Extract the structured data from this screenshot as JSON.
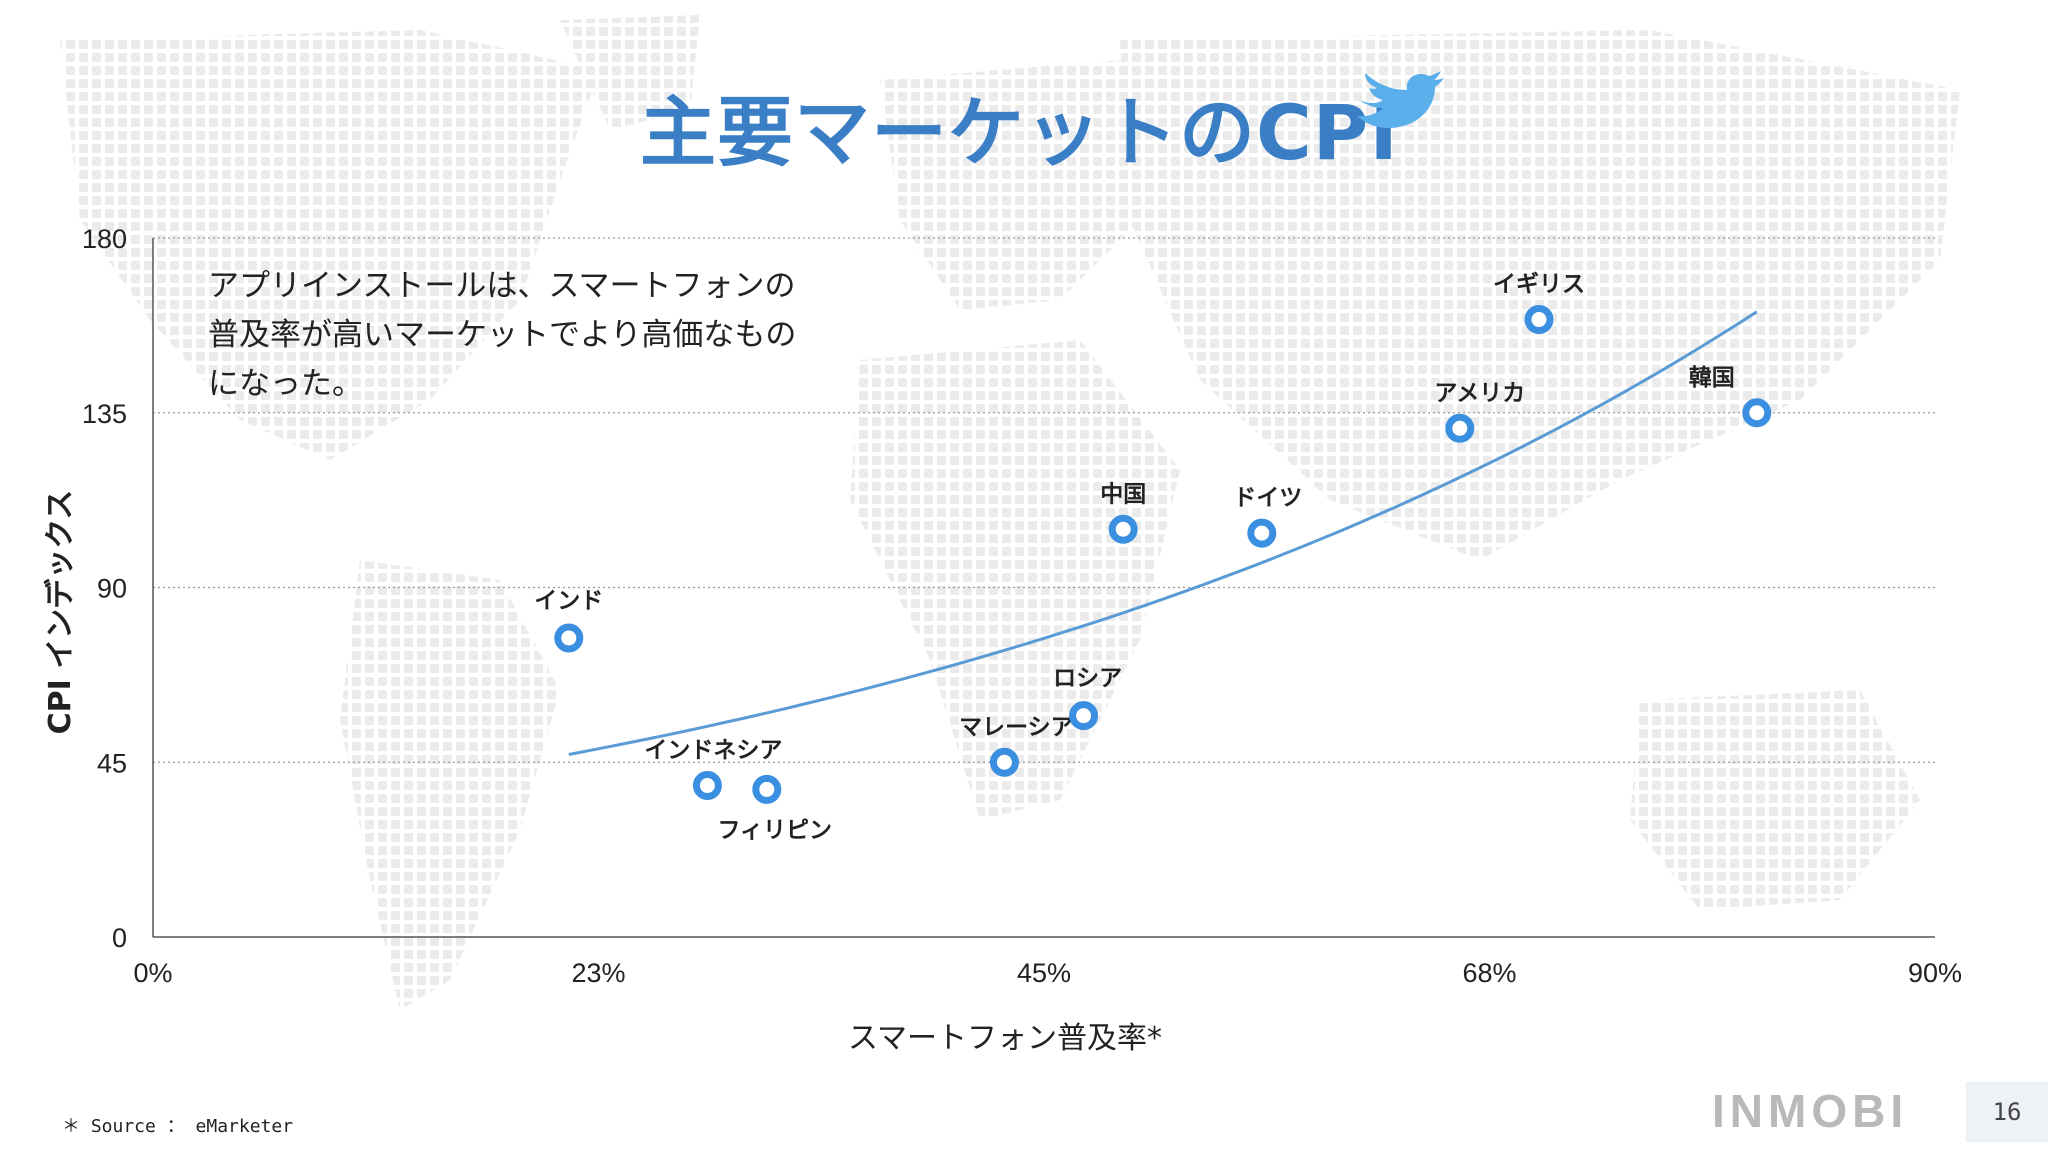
{
  "slide": {
    "title": "主要マーケットのCPI",
    "note": "アプリインストールは、スマートフォンの\n普及率が高いマーケットでより高価なもの\nになった。",
    "source": "＊ Source ： eMarketer",
    "brand": "INMOBI",
    "page_number": "16",
    "icons": [
      "twitter-bird-icon",
      "world-map-background"
    ],
    "accent_color": "#3a7fc6"
  },
  "chart_data": {
    "type": "scatter",
    "xlabel": "スマートフォン普及率*",
    "ylabel": "CPI インデックス",
    "xlim": [
      0,
      90
    ],
    "ylim": [
      0,
      180
    ],
    "x_ticks": [
      0,
      22.5,
      45,
      67.5,
      90
    ],
    "x_tick_labels": [
      "0%",
      "23%",
      "45%",
      "68%",
      "90%"
    ],
    "y_ticks": [
      0,
      45,
      90,
      135,
      180
    ],
    "y_tick_labels": [
      "0",
      "45",
      "90",
      "135",
      "180"
    ],
    "grid": "horizontal dotted",
    "point_color": "#3a8fe0",
    "trend_color": "#5b9bd5",
    "points": [
      {
        "name": "インド",
        "x": 21,
        "y": 77
      },
      {
        "name": "インドネシア",
        "x": 28,
        "y": 39
      },
      {
        "name": "フィリピン",
        "x": 31,
        "y": 38
      },
      {
        "name": "マレーシア",
        "x": 43,
        "y": 45
      },
      {
        "name": "ロシア",
        "x": 47,
        "y": 57
      },
      {
        "name": "中国",
        "x": 49,
        "y": 105
      },
      {
        "name": "ドイツ",
        "x": 56,
        "y": 104
      },
      {
        "name": "アメリカ",
        "x": 66,
        "y": 131
      },
      {
        "name": "イギリス",
        "x": 70,
        "y": 159
      },
      {
        "name": "韓国",
        "x": 81,
        "y": 135
      }
    ],
    "trendline": {
      "type": "exponential",
      "x_range": [
        21,
        81
      ],
      "y_start": 47,
      "y_end": 161
    }
  }
}
